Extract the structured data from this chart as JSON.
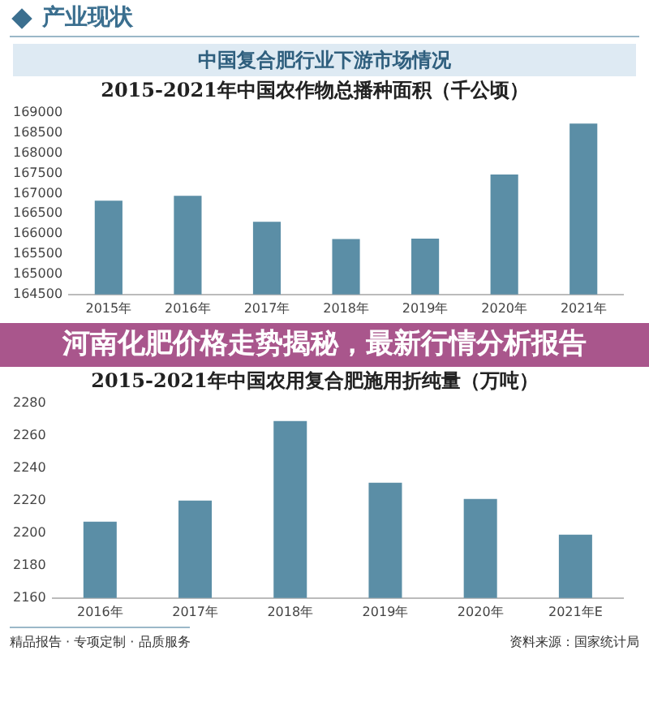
{
  "chart_data": [
    {
      "type": "bar",
      "title": "2015-2021年中国农作物总播种面积（千公顷）",
      "annotations": [
        "产业现状",
        "中国复合肥行业下游市场情况",
        "河南化肥价格走势揭秘，最新行情分析报告"
      ],
      "categories": [
        "2015年",
        "2016年",
        "2017年",
        "2018年",
        "2019年",
        "2020年",
        "2021年"
      ],
      "values": [
        166820,
        166940,
        166300,
        165870,
        165880,
        167470,
        168730
      ],
      "color": "#5b8ea6",
      "ylim": [
        164500,
        169000
      ],
      "yticks": [
        164500,
        165000,
        165500,
        166000,
        166500,
        167000,
        167500,
        168000,
        168500,
        169000
      ]
    },
    {
      "type": "bar",
      "title": "2015-2021年中国农用复合肥施用折纯量（万吨）",
      "annotations": [
        "资料来源：国家统计局",
        "精品报告 · 专项定制 · 品质服务"
      ],
      "categories": [
        "2016年",
        "2017年",
        "2018年",
        "2019年",
        "2020年",
        "2021年E"
      ],
      "values": [
        2207,
        2220,
        2269,
        2231,
        2221,
        2199
      ],
      "color": "#5b8ea6",
      "ylim": [
        2160,
        2280
      ],
      "yticks": [
        2160,
        2180,
        2200,
        2220,
        2240,
        2260,
        2280
      ]
    }
  ]
}
